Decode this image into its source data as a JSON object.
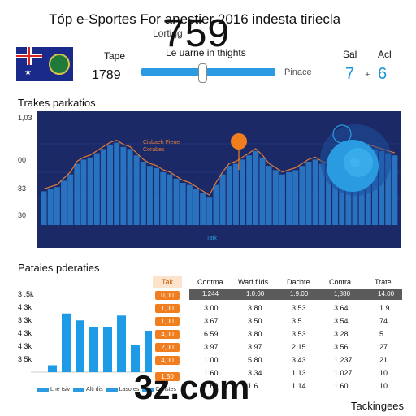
{
  "header": {
    "title": "Tóp e-Sportes For anestier 2016 indesta tiriecla",
    "subtitle": "Lortigg",
    "big_number": "759"
  },
  "stats": {
    "tape_label": "Tape",
    "tape_value": "1789",
    "slider_label": "Le uarne in thights",
    "slider_level": 0.45,
    "placeholder": "Pinace",
    "sal_label": "Sal",
    "act_label": "Acl",
    "sal_value": "7",
    "plus": "+",
    "act_value": "6"
  },
  "colors": {
    "accent": "#2a9be0",
    "panel": "#1b2a66",
    "orange": "#f07e1f"
  },
  "main_chart": {
    "section_title": "Trakes parkatios",
    "x_label": "Tatk",
    "annotation": "Cisbaeh Fiene\nCorabes",
    "chart_data": {
      "type": "area",
      "y_ticks": [
        "1,03",
        "00",
        "83",
        "30"
      ],
      "ylim": [
        0,
        100
      ],
      "values": [
        32,
        34,
        36,
        42,
        48,
        58,
        62,
        64,
        68,
        72,
        76,
        78,
        74,
        72,
        66,
        60,
        56,
        54,
        50,
        48,
        44,
        40,
        38,
        34,
        30,
        26,
        38,
        48,
        56,
        58,
        62,
        66,
        70,
        64,
        56,
        52,
        48,
        50,
        52,
        56,
        60,
        62,
        58,
        56,
        60,
        62,
        66,
        70,
        72,
        74,
        72,
        70,
        68,
        66
      ]
    }
  },
  "lower": {
    "section_title": "Pataies pderaties",
    "bar_chart": {
      "chart_data": {
        "type": "bar",
        "y_labels": [
          "3 .5k",
          "4 3k",
          "3 3k",
          "4 3k",
          "4 3k",
          "3 5k"
        ],
        "values": [
          0,
          10,
          85,
          75,
          65,
          65,
          82,
          40,
          60
        ]
      },
      "legend": [
        "Lhe tsiv",
        "Alti dis",
        "Lasores",
        "Caristes"
      ]
    },
    "orange_column": {
      "header": "Tak",
      "cells": [
        "0,00",
        "1,00",
        "1,00",
        "4,00",
        "2,00",
        "4,00",
        "1,50"
      ]
    },
    "table": {
      "top_headers": [
        "Contma",
        "Warf fiids",
        "Dachte",
        "Contra",
        "Trate"
      ],
      "subheaders": [
        "1.244",
        "1.0.00",
        "1.9.00",
        "1,880",
        "14.00"
      ],
      "rows": [
        [
          "3.00",
          "3.80",
          "3.53",
          "3.64",
          "1.9"
        ],
        [
          "3.67",
          "3.50",
          "3.5",
          "3.54",
          "74"
        ],
        [
          "6.59",
          "3.80",
          "3.53",
          "3.28",
          "5"
        ],
        [
          "3.97",
          "3.97",
          "2.15",
          "3.56",
          "27"
        ],
        [
          "1.00",
          "5.80",
          "3.43",
          "1.237",
          "21"
        ],
        [
          "1.60",
          "3.34",
          "1.13",
          "1.027",
          "10"
        ],
        [
          "1.60",
          "1.6",
          "1.14",
          "1.60",
          "10"
        ]
      ]
    },
    "watermark": "3z.com",
    "footer_label": "Tackingees"
  }
}
